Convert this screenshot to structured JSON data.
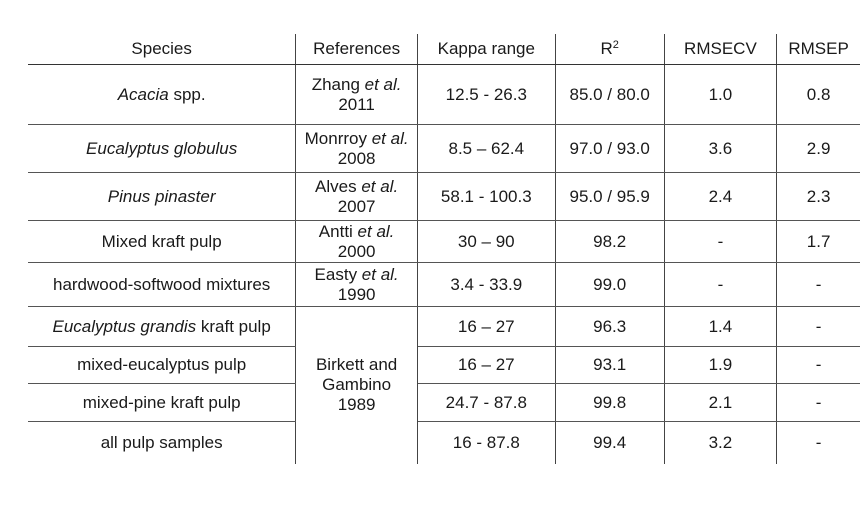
{
  "headers": {
    "species": "Species",
    "references": "References",
    "kappa": "Kappa range",
    "r2_base": "R",
    "r2_sup": "2",
    "rmsecv": "RMSECV",
    "rmsep": "RMSEP"
  },
  "rows": [
    {
      "species_italic": "Acacia",
      "species_rest": " spp.",
      "ref_pre": "Zhang ",
      "ref_etal": "et al.",
      "ref_post": " 2011",
      "kappa": "12.5 - 26.3",
      "r2": "85.0 / 80.0",
      "rmsecv": "1.0",
      "rmsep": "0.8"
    },
    {
      "species_italic": "Eucalyptus globulus",
      "species_rest": "",
      "ref_pre": "Monrroy ",
      "ref_etal": "et al.",
      "ref_post": " 2008",
      "kappa": "8.5 – 62.4",
      "r2": "97.0 / 93.0",
      "rmsecv": "3.6",
      "rmsep": "2.9"
    },
    {
      "species_italic": "Pinus pinaster",
      "species_rest": "",
      "ref_pre": "Alves ",
      "ref_etal": "et al.",
      "ref_post": " 2007",
      "kappa": "58.1 - 100.3",
      "r2": "95.0 / 95.9",
      "rmsecv": "2.4",
      "rmsep": "2.3"
    },
    {
      "species_italic": "",
      "species_rest": "Mixed kraft pulp",
      "ref_pre": "Antti ",
      "ref_etal": "et al.",
      "ref_post": " 2000",
      "kappa": "30 – 90",
      "r2": "98.2",
      "rmsecv": "-",
      "rmsep": "1.7"
    },
    {
      "species_italic": "",
      "species_rest": "hardwood-softwood mixtures",
      "ref_pre": "Easty ",
      "ref_etal": "et al.",
      "ref_post": " 1990",
      "kappa": "3.4 - 33.9",
      "r2": "99.0",
      "rmsecv": "-",
      "rmsep": "-"
    },
    {
      "species_italic": "Eucalyptus grandis",
      "species_rest": " kraft pulp",
      "kappa": "16 – 27",
      "r2": "96.3",
      "rmsecv": "1.4",
      "rmsep": "-"
    },
    {
      "species_italic": "",
      "species_rest": "mixed-eucalyptus pulp",
      "kappa": "16 – 27",
      "r2": "93.1",
      "rmsecv": "1.9",
      "rmsep": "-"
    },
    {
      "species_italic": "",
      "species_rest": "mixed-pine kraft pulp",
      "kappa": "24.7 - 87.8",
      "r2": "99.8",
      "rmsecv": "2.1",
      "rmsep": "-"
    },
    {
      "species_italic": "",
      "species_rest": "all pulp samples",
      "kappa": "16 - 87.8",
      "r2": "99.4",
      "rmsecv": "3.2",
      "rmsep": "-"
    }
  ],
  "shared_reference": "Birkett and Gambino 1989"
}
